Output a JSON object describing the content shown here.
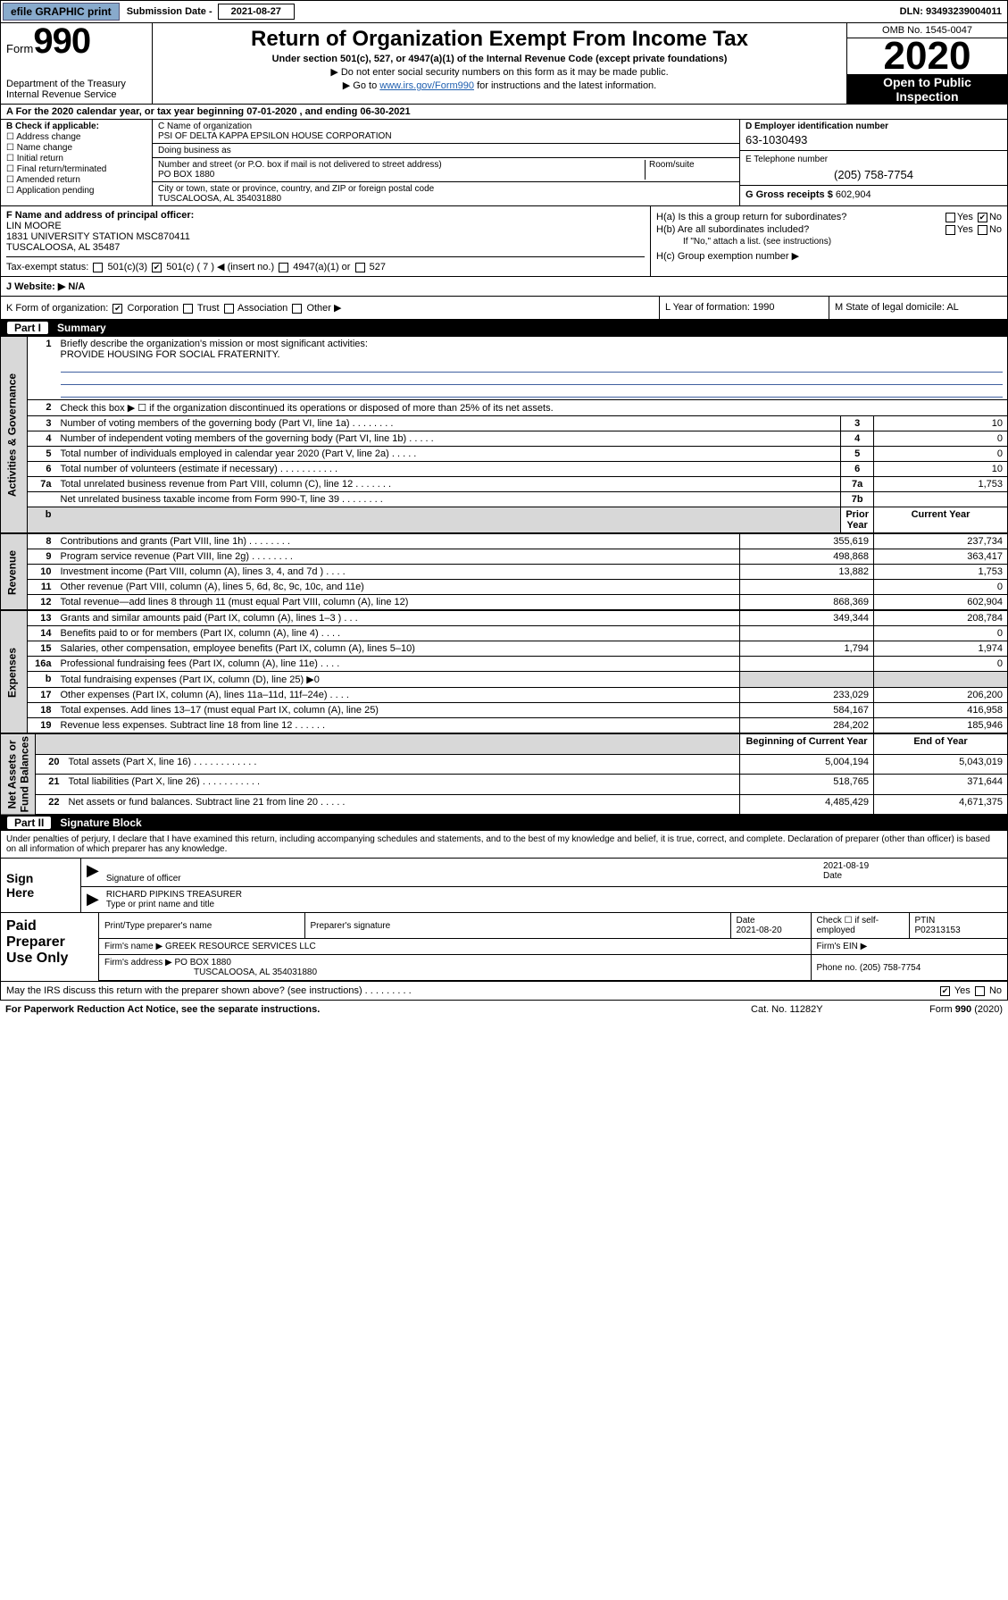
{
  "top": {
    "efile": "efile GRAPHIC print",
    "sub_lbl": "Submission Date - 2021-08-27",
    "dln": "DLN: 93493239004011"
  },
  "header": {
    "form_word": "Form",
    "form_num": "990",
    "dept": "Department of the Treasury\nInternal Revenue Service",
    "title": "Return of Organization Exempt From Income Tax",
    "subtitle": "Under section 501(c), 527, or 4947(a)(1) of the Internal Revenue Code (except private foundations)",
    "note1": "▶ Do not enter social security numbers on this form as it may be made public.",
    "note2_pre": "▶ Go to ",
    "note2_link": "www.irs.gov/Form990",
    "note2_post": " for instructions and the latest information.",
    "omb": "OMB No. 1545-0047",
    "year": "2020",
    "open": "Open to Public\nInspection"
  },
  "tyline": "A For the 2020 calendar year, or tax year beginning 07-01-2020     , and ending 06-30-2021",
  "boxB": {
    "title": "B Check if applicable:",
    "opts": [
      "Address change",
      "Name change",
      "Initial return",
      "Final return/terminated",
      "Amended return",
      "Application pending"
    ]
  },
  "boxC": {
    "name_lbl": "C Name of organization",
    "name": "PSI OF DELTA KAPPA EPSILON HOUSE CORPORATION",
    "dba_lbl": "Doing business as",
    "addr_lbl": "Number and street (or P.O. box if mail is not delivered to street address)",
    "addr": "PO BOX 1880",
    "room_lbl": "Room/suite",
    "city_lbl": "City or town, state or province, country, and ZIP or foreign postal code",
    "city": "TUSCALOOSA, AL  354031880"
  },
  "boxD": {
    "lbl": "D Employer identification number",
    "val": "63-1030493"
  },
  "boxE": {
    "lbl": "E Telephone number",
    "val": "(205) 758-7754"
  },
  "boxG": {
    "lbl": "G Gross receipts $",
    "val": "602,904"
  },
  "boxF": {
    "lbl": "F  Name and address of principal officer:",
    "name": "LIN MOORE",
    "addr": "1831 UNIVERSITY STATION MSC870411\nTUSCALOOSA, AL  35487"
  },
  "boxH": {
    "a": "H(a)  Is this a group return for subordinates?",
    "b": "H(b)  Are all subordinates included?",
    "b_note": "If \"No,\" attach a list. (see instructions)",
    "c": "H(c)  Group exemption number ▶"
  },
  "taxexempt": {
    "lbl": "Tax-exempt status:",
    "c7": "501(c) ( 7 ) ◀ (insert no.)",
    "c3": "501(c)(3)",
    "a4947": "4947(a)(1) or",
    "s527": "527"
  },
  "website": {
    "lbl": "J   Website: ▶",
    "val": "N/A"
  },
  "korg": {
    "k": "K Form of organization:",
    "corp": "Corporation",
    "trust": "Trust",
    "assoc": "Association",
    "other": "Other ▶",
    "l": "L Year of formation: 1990",
    "m": "M State of legal domicile: AL"
  },
  "part1": {
    "pn": "Part I",
    "title": "Summary"
  },
  "summary": {
    "l1": "Briefly describe the organization's mission or most significant activities:",
    "l1v": "PROVIDE HOUSING FOR SOCIAL FRATERNITY.",
    "l2": "Check this box ▶ ☐  if the organization discontinued its operations or disposed of more than 25% of its net assets.",
    "l3": "Number of voting members of the governing body (Part VI, line 1a)  .    .    .    .    .    .    .    .",
    "l4": "Number of independent voting members of the governing body (Part VI, line 1b)  .    .    .    .    .",
    "l5": "Total number of individuals employed in calendar year 2020 (Part V, line 2a)  .    .    .    .    .",
    "l6": "Total number of volunteers (estimate if necessary)  .    .    .    .    .    .    .    .    .    .    .",
    "l7a": "Total unrelated business revenue from Part VIII, column (C), line 12  .    .    .    .    .    .    .",
    "l7b": "Net unrelated business taxable income from Form 990-T, line 39  .    .    .    .    .    .    .    ."
  },
  "sumvals": {
    "3": "10",
    "4": "0",
    "5": "0",
    "6": "10",
    "7a": "1,753",
    "7b": ""
  },
  "revhdr": {
    "prior": "Prior Year",
    "curr": "Current Year"
  },
  "revenue": {
    "side": "Revenue",
    "rows": [
      {
        "n": "8",
        "d": "Contributions and grants (Part VIII, line 1h)  .    .    .    .    .    .    .    .",
        "p": "355,619",
        "c": "237,734"
      },
      {
        "n": "9",
        "d": "Program service revenue (Part VIII, line 2g)  .    .    .    .    .    .    .    .",
        "p": "498,868",
        "c": "363,417"
      },
      {
        "n": "10",
        "d": "Investment income (Part VIII, column (A), lines 3, 4, and 7d )  .    .    .    .",
        "p": "13,882",
        "c": "1,753"
      },
      {
        "n": "11",
        "d": "Other revenue (Part VIII, column (A), lines 5, 6d, 8c, 9c, 10c, and 11e)",
        "p": "",
        "c": "0"
      },
      {
        "n": "12",
        "d": "Total revenue—add lines 8 through 11 (must equal Part VIII, column (A), line 12)",
        "p": "868,369",
        "c": "602,904"
      }
    ]
  },
  "expenses": {
    "side": "Expenses",
    "rows": [
      {
        "n": "13",
        "d": "Grants and similar amounts paid (Part IX, column (A), lines 1–3 )    .    .    .",
        "p": "349,344",
        "c": "208,784"
      },
      {
        "n": "14",
        "d": "Benefits paid to or for members (Part IX, column (A), line 4)  .    .    .    .",
        "p": "",
        "c": "0"
      },
      {
        "n": "15",
        "d": "Salaries, other compensation, employee benefits (Part IX, column (A), lines 5–10)",
        "p": "1,794",
        "c": "1,974"
      },
      {
        "n": "16a",
        "d": "Professional fundraising fees (Part IX, column (A), line 11e)  .    .    .    .",
        "p": "",
        "c": "0"
      },
      {
        "n": "b",
        "d": "Total fundraising expenses (Part IX, column (D), line 25) ▶0",
        "p": "–shade–",
        "c": "–shade–"
      },
      {
        "n": "17",
        "d": "Other expenses (Part IX, column (A), lines 11a–11d, 11f–24e)  .    .    .    .",
        "p": "233,029",
        "c": "206,200"
      },
      {
        "n": "18",
        "d": "Total expenses. Add lines 13–17 (must equal Part IX, column (A), line 25)",
        "p": "584,167",
        "c": "416,958"
      },
      {
        "n": "19",
        "d": "Revenue less expenses. Subtract line 18 from line 12  .    .    .    .    .    .",
        "p": "284,202",
        "c": "185,946"
      }
    ]
  },
  "netassets": {
    "side": "Net Assets or\nFund Balances",
    "hdr": {
      "b": "Beginning of Current Year",
      "e": "End of Year"
    },
    "rows": [
      {
        "n": "20",
        "d": "Total assets (Part X, line 16)  .    .    .    .    .    .    .    .    .    .    .    .",
        "p": "5,004,194",
        "c": "5,043,019"
      },
      {
        "n": "21",
        "d": "Total liabilities (Part X, line 26)  .    .    .    .    .    .    .    .    .    .    .",
        "p": "518,765",
        "c": "371,644"
      },
      {
        "n": "22",
        "d": "Net assets or fund balances. Subtract line 21 from line 20  .    .    .    .    .",
        "p": "4,485,429",
        "c": "4,671,375"
      }
    ]
  },
  "part2": {
    "pn": "Part II",
    "title": "Signature Block"
  },
  "sigintro": "Under penalties of perjury, I declare that I have examined this return, including accompanying schedules and statements, and to the best of my knowledge and belief, it is true, correct, and complete. Declaration of preparer (other than officer) is based on all information of which preparer has any knowledge.",
  "sign": {
    "here": "Sign\nHere",
    "sigoff": "Signature of officer",
    "date": "2021-08-19",
    "datelbl": "Date",
    "name": "RICHARD PIPKINS  TREASURER",
    "namelbl": "Type or print name and title"
  },
  "prep": {
    "lbl": "Paid\nPreparer\nUse Only",
    "c1": "Print/Type preparer's name",
    "c2": "Preparer's signature",
    "c3": "Date",
    "c3v": "2021-08-20",
    "c4": "Check ☐ if self-employed",
    "c5": "PTIN",
    "c5v": "P02313153",
    "fn": "Firm's name    ▶",
    "fnv": "GREEK RESOURCE SERVICES LLC",
    "fein": "Firm's EIN ▶",
    "fa": "Firm's address ▶",
    "fav": "PO BOX 1880",
    "fav2": "TUSCALOOSA, AL  354031880",
    "ph": "Phone no. (205) 758-7754"
  },
  "discuss": "May the IRS discuss this return with the preparer shown above? (see instructions)   .    .    .    .    .    .    .    .    .",
  "discussYes": "Yes",
  "discussNo": "No",
  "foot": {
    "l": "For Paperwork Reduction Act Notice, see the separate instructions.",
    "c": "Cat. No. 11282Y",
    "r": "Form 990 (2020)"
  }
}
